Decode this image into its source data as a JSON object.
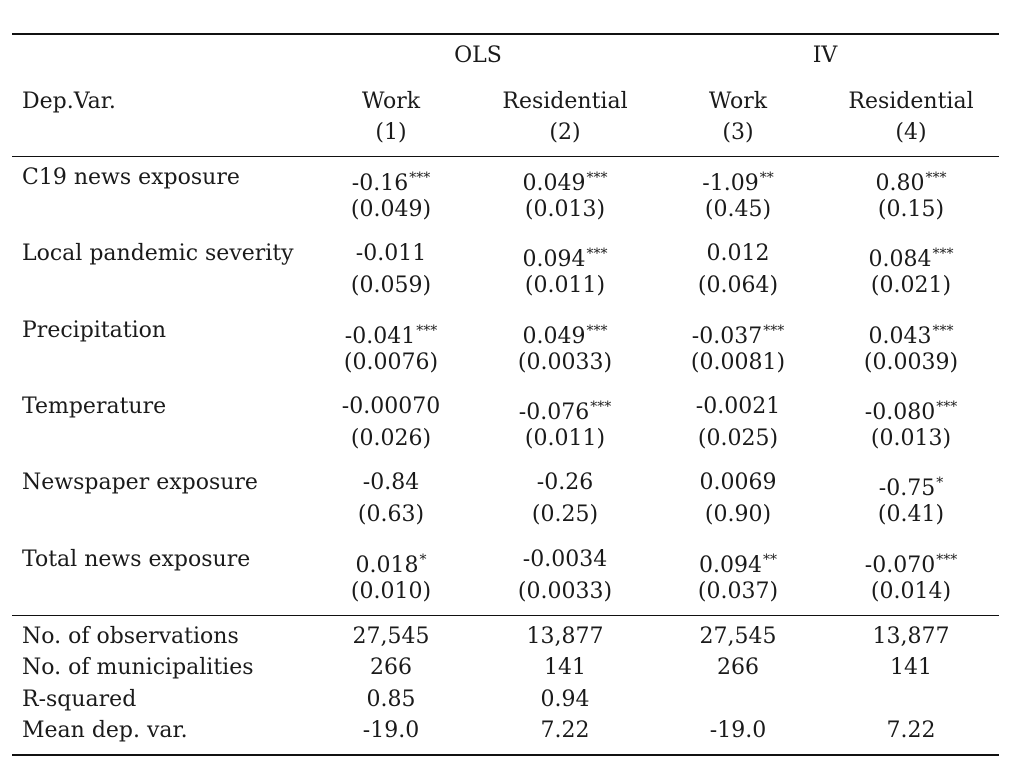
{
  "table": {
    "group_headers": [
      "OLS",
      "IV"
    ],
    "dep_var_label": "Dep.Var.",
    "columns": [
      {
        "label": "Work",
        "number": "(1)"
      },
      {
        "label": "Residential",
        "number": "(2)"
      },
      {
        "label": "Work",
        "number": "(3)"
      },
      {
        "label": "Residential",
        "number": "(4)"
      }
    ],
    "rows": [
      {
        "label": "C19 news exposure",
        "coef": [
          {
            "v": "-0.16",
            "s": "***"
          },
          {
            "v": "0.049",
            "s": "***"
          },
          {
            "v": "-1.09",
            "s": "**"
          },
          {
            "v": "0.80",
            "s": "***"
          }
        ],
        "se": [
          "(0.049)",
          "(0.013)",
          "(0.45)",
          "(0.15)"
        ]
      },
      {
        "label": "Local pandemic severity",
        "coef": [
          {
            "v": "-0.011",
            "s": ""
          },
          {
            "v": "0.094",
            "s": "***"
          },
          {
            "v": "0.012",
            "s": ""
          },
          {
            "v": "0.084",
            "s": "***"
          }
        ],
        "se": [
          "(0.059)",
          "(0.011)",
          "(0.064)",
          "(0.021)"
        ]
      },
      {
        "label": "Precipitation",
        "coef": [
          {
            "v": "-0.041",
            "s": "***"
          },
          {
            "v": "0.049",
            "s": "***"
          },
          {
            "v": "-0.037",
            "s": "***"
          },
          {
            "v": "0.043",
            "s": "***"
          }
        ],
        "se": [
          "(0.0076)",
          "(0.0033)",
          "(0.0081)",
          "(0.0039)"
        ]
      },
      {
        "label": "Temperature",
        "coef": [
          {
            "v": "-0.00070",
            "s": ""
          },
          {
            "v": "-0.076",
            "s": "***"
          },
          {
            "v": "-0.0021",
            "s": ""
          },
          {
            "v": "-0.080",
            "s": "***"
          }
        ],
        "se": [
          "(0.026)",
          "(0.011)",
          "(0.025)",
          "(0.013)"
        ]
      },
      {
        "label": "Newspaper exposure",
        "coef": [
          {
            "v": "-0.84",
            "s": ""
          },
          {
            "v": "-0.26",
            "s": ""
          },
          {
            "v": "0.0069",
            "s": ""
          },
          {
            "v": "-0.75",
            "s": "*"
          }
        ],
        "se": [
          "(0.63)",
          "(0.25)",
          "(0.90)",
          "(0.41)"
        ]
      },
      {
        "label": "Total news exposure",
        "coef": [
          {
            "v": "0.018",
            "s": "*"
          },
          {
            "v": "-0.0034",
            "s": ""
          },
          {
            "v": "0.094",
            "s": "**"
          },
          {
            "v": "-0.070",
            "s": "***"
          }
        ],
        "se": [
          "(0.010)",
          "(0.0033)",
          "(0.037)",
          "(0.014)"
        ]
      }
    ],
    "stats": [
      {
        "label": "No. of observations",
        "values": [
          "27,545",
          "13,877",
          "27,545",
          "13,877"
        ]
      },
      {
        "label": "No. of municipalities",
        "values": [
          "266",
          "141",
          "266",
          "141"
        ]
      },
      {
        "label": "R-squared",
        "values": [
          "0.85",
          "0.94",
          "",
          ""
        ]
      },
      {
        "label": "Mean dep. var.",
        "values": [
          "-19.0",
          "7.22",
          "-19.0",
          "7.22"
        ]
      }
    ]
  }
}
